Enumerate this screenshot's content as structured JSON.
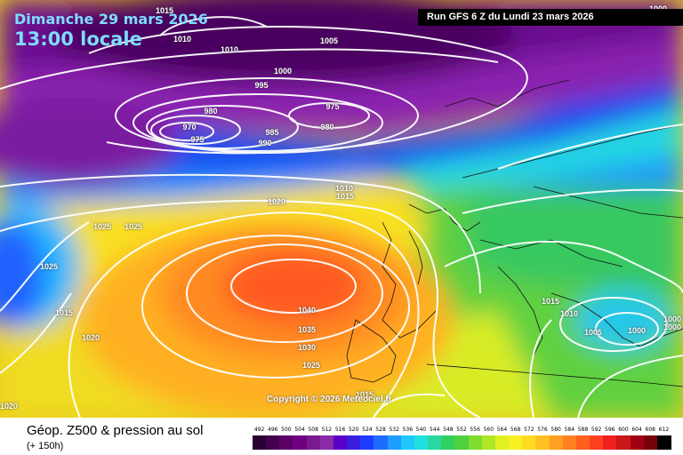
{
  "header": {
    "date_line": "Dimanche 29 mars 2026",
    "time_line": "13:00 locale",
    "run_info": "Run GFS 6 Z du Lundi 23 mars 2026"
  },
  "footer": {
    "title": "Géop. Z500 & pression au sol",
    "subtitle": "(+ 150h)",
    "copyright": "Copyright © 2026 Meteociel.fr"
  },
  "isobar_labels": [
    {
      "text": "1015",
      "at": [
        185,
        12
      ]
    },
    {
      "text": "1010",
      "at": [
        205,
        44
      ]
    },
    {
      "text": "1010",
      "at": [
        258,
        56
      ]
    },
    {
      "text": "1005",
      "at": [
        370,
        46
      ]
    },
    {
      "text": "1000",
      "at": [
        318,
        80
      ]
    },
    {
      "text": "995",
      "at": [
        294,
        96
      ]
    },
    {
      "text": "980",
      "at": [
        237,
        125
      ]
    },
    {
      "text": "975",
      "at": [
        374,
        120
      ]
    },
    {
      "text": "970",
      "at": [
        213,
        143
      ]
    },
    {
      "text": "975",
      "at": [
        222,
        157
      ]
    },
    {
      "text": "985",
      "at": [
        306,
        149
      ]
    },
    {
      "text": "980",
      "at": [
        368,
        143
      ]
    },
    {
      "text": "990",
      "at": [
        298,
        161
      ]
    },
    {
      "text": "1010",
      "at": [
        387,
        212
      ]
    },
    {
      "text": "1015",
      "at": [
        388,
        221
      ]
    },
    {
      "text": "1020",
      "at": [
        311,
        227
      ]
    },
    {
      "text": "1025",
      "at": [
        115,
        255
      ]
    },
    {
      "text": "1025",
      "at": [
        150,
        255
      ]
    },
    {
      "text": "1025",
      "at": [
        55,
        300
      ]
    },
    {
      "text": "1015",
      "at": [
        72,
        352
      ]
    },
    {
      "text": "1040",
      "at": [
        345,
        349
      ]
    },
    {
      "text": "1035",
      "at": [
        345,
        371
      ]
    },
    {
      "text": "1030",
      "at": [
        345,
        391
      ]
    },
    {
      "text": "1020",
      "at": [
        102,
        380
      ]
    },
    {
      "text": "1025",
      "at": [
        350,
        411
      ]
    },
    {
      "text": "1015",
      "at": [
        619,
        339
      ]
    },
    {
      "text": "1010",
      "at": [
        640,
        353
      ]
    },
    {
      "text": "1005",
      "at": [
        667,
        374
      ]
    },
    {
      "text": "1000",
      "at": [
        716,
        372
      ]
    },
    {
      "text": "1000",
      "at": [
        756,
        359
      ]
    },
    {
      "text": "1000",
      "at": [
        756,
        368
      ]
    },
    {
      "text": "1000",
      "at": [
        740,
        10
      ]
    },
    {
      "text": "1020",
      "at": [
        10,
        457
      ]
    },
    {
      "text": "1015",
      "at": [
        410,
        444
      ]
    }
  ],
  "legend": {
    "ticks": [
      "492",
      "496",
      "500",
      "504",
      "508",
      "512",
      "516",
      "520",
      "524",
      "528",
      "532",
      "536",
      "540",
      "544",
      "548",
      "552",
      "556",
      "560",
      "564",
      "568",
      "572",
      "576",
      "580",
      "584",
      "588",
      "592",
      "596",
      "600",
      "604",
      "608",
      "612"
    ],
    "colors": [
      "#2a0032",
      "#43004d",
      "#5c0066",
      "#700080",
      "#7a1a8f",
      "#8a2aa8",
      "#5a00c8",
      "#3a1ee0",
      "#1e3cff",
      "#1e6cff",
      "#1e9cff",
      "#1ec8ff",
      "#20e0e0",
      "#28d8a0",
      "#30d060",
      "#50d040",
      "#80dc30",
      "#b0e628",
      "#e0f020",
      "#f8f020",
      "#ffdc20",
      "#ffc020",
      "#ffa020",
      "#ff8020",
      "#ff6020",
      "#ff4020",
      "#f02020",
      "#c81818",
      "#a00010",
      "#780008",
      "#000000"
    ]
  }
}
